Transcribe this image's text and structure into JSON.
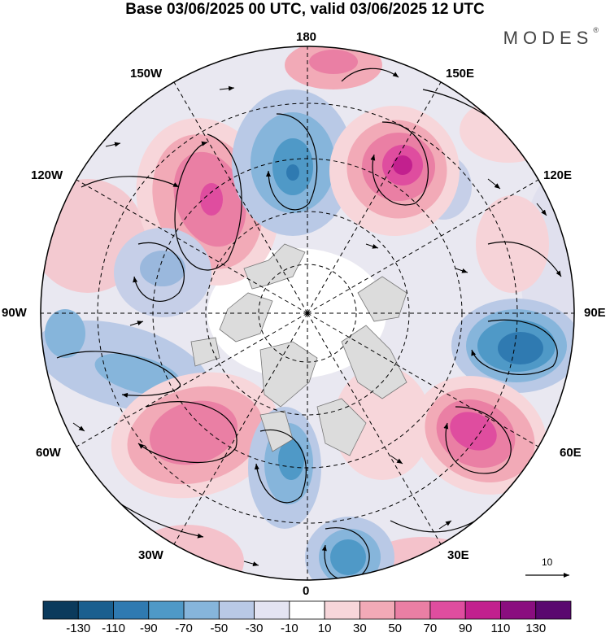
{
  "title": "Base 03/06/2025 00 UTC, valid 03/06/2025 12 UTC",
  "brand": "MODES",
  "brand_mark": "®",
  "lon_labels": {
    "lon_180": "180",
    "lon_150e": "150E",
    "lon_150w": "150W",
    "lon_120e": "120E",
    "lon_120w": "120W",
    "lon_90e": "90E",
    "lon_90w": "90W",
    "lon_60e": "60E",
    "lon_60w": "60W",
    "lon_30e": "30E",
    "lon_30w": "30W",
    "lon_0": "0"
  },
  "reference_vector": {
    "label": "10"
  },
  "colorbar": {
    "colors": [
      "#0b3a5c",
      "#1a5f8f",
      "#2f7ab1",
      "#4f99c7",
      "#86b5db",
      "#b9c9e6",
      "#e4e4f2",
      "#ffffff",
      "#f7d6da",
      "#f2aab7",
      "#ea7fa4",
      "#df4d9f",
      "#c2208e",
      "#8a0e7f",
      "#5a086f"
    ],
    "labels": [
      "-130",
      "-110",
      "-90",
      "-70",
      "-50",
      "-30",
      "-10",
      "10",
      "30",
      "50",
      "70",
      "90",
      "110",
      "130"
    ]
  }
}
